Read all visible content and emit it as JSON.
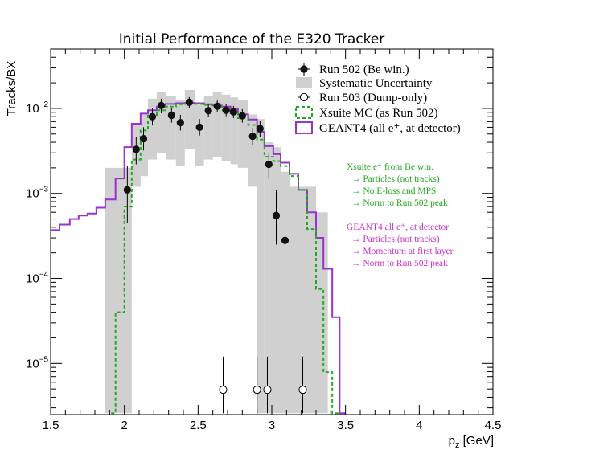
{
  "chart_data": {
    "type": "histogram",
    "title": "Initial Performance of the E320 Tracker",
    "xlabel": "p_z [GeV]",
    "ylabel": "Tracks/BX",
    "xlim": [
      1.5,
      4.5
    ],
    "ylim": [
      2.5e-06,
      0.05
    ],
    "yscale": "log",
    "x_ticks": [
      "1.5",
      "2",
      "2.5",
      "3",
      "3.5",
      "4",
      "4.5"
    ],
    "y_ticks": [
      {
        "value": 1e-05,
        "base": "10",
        "exp": "−5"
      },
      {
        "value": 0.0001,
        "base": "10",
        "exp": "−4"
      },
      {
        "value": 0.001,
        "base": "10",
        "exp": "−3"
      },
      {
        "value": 0.01,
        "base": "10",
        "exp": "−2"
      }
    ],
    "legend": {
      "position": "top-right",
      "entries": [
        "Run 502 (Be win.)",
        "Systematic Uncertainty",
        "Run 503 (Dump-only)",
        "Xsuite MC (as Run 502)",
        "GEANT4 (all e⁺, at detector)"
      ]
    },
    "annotations": [
      {
        "color": "#22aa22",
        "lines": [
          "Xsuite e⁺ from Be win.",
          "→ Particles (not tracks)",
          "→ No E-loss and MPS",
          "→ Norm to Run 502 peak"
        ]
      },
      {
        "color": "#cc33cc",
        "lines": [
          "GEANT4 all e⁺, at detector",
          "→ Particles (not tracks)",
          "→ Momentum at first layer",
          "→ Norm to Run 502 peak"
        ]
      }
    ],
    "series": [
      {
        "name": "Run 502 (Be win.)",
        "kind": "points",
        "points": [
          {
            "x": 2.02,
            "y": 0.0011,
            "lo": 0.00045,
            "hi": 0.0021
          },
          {
            "x": 2.08,
            "y": 0.0033,
            "lo": 0.0022,
            "hi": 0.0046
          },
          {
            "x": 2.13,
            "y": 0.0044,
            "lo": 0.0032,
            "hi": 0.006
          },
          {
            "x": 2.19,
            "y": 0.008,
            "lo": 0.0063,
            "hi": 0.01
          },
          {
            "x": 2.25,
            "y": 0.0108,
            "lo": 0.0088,
            "hi": 0.013
          },
          {
            "x": 2.32,
            "y": 0.0083,
            "lo": 0.0068,
            "hi": 0.0101
          },
          {
            "x": 2.38,
            "y": 0.0068,
            "lo": 0.0055,
            "hi": 0.0084
          },
          {
            "x": 2.44,
            "y": 0.0118,
            "lo": 0.0102,
            "hi": 0.0136
          },
          {
            "x": 2.51,
            "y": 0.006,
            "lo": 0.0048,
            "hi": 0.0075
          },
          {
            "x": 2.57,
            "y": 0.0094,
            "lo": 0.008,
            "hi": 0.0111
          },
          {
            "x": 2.63,
            "y": 0.0106,
            "lo": 0.0091,
            "hi": 0.0124
          },
          {
            "x": 2.69,
            "y": 0.0095,
            "lo": 0.0081,
            "hi": 0.0112
          },
          {
            "x": 2.74,
            "y": 0.0091,
            "lo": 0.0077,
            "hi": 0.0107
          },
          {
            "x": 2.8,
            "y": 0.0082,
            "lo": 0.0068,
            "hi": 0.0098
          },
          {
            "x": 2.87,
            "y": 0.0047,
            "lo": 0.0037,
            "hi": 0.0059
          },
          {
            "x": 2.92,
            "y": 0.0058,
            "lo": 0.0046,
            "hi": 0.0072
          },
          {
            "x": 2.98,
            "y": 0.0022,
            "lo": 0.0015,
            "hi": 0.003
          },
          {
            "x": 3.03,
            "y": 0.00055,
            "lo": 0.00025,
            "hi": 0.0011
          },
          {
            "x": 3.09,
            "y": 0.00028,
            "lo": 2.6e-06,
            "hi": 0.0008
          }
        ]
      },
      {
        "name": "Run 503 (Dump-only)",
        "kind": "points",
        "points": [
          {
            "x": 2.67,
            "y": 4.9e-06,
            "lo": 2.6e-06,
            "hi": 1.2e-05
          },
          {
            "x": 2.9,
            "y": 4.9e-06,
            "lo": 2.6e-06,
            "hi": 1.2e-05
          },
          {
            "x": 2.97,
            "y": 4.9e-06,
            "lo": 2.6e-06,
            "hi": 1.2e-05
          },
          {
            "x": 3.21,
            "y": 4.9e-06,
            "lo": 2.6e-06,
            "hi": 1.2e-05
          }
        ]
      },
      {
        "name": "Systematic Uncertainty",
        "kind": "band",
        "bins": [
          {
            "x0": 1.87,
            "x1": 2.05,
            "lo": 2.6e-06,
            "hi": 0.002
          },
          {
            "x0": 2.05,
            "x1": 2.11,
            "lo": 0.0012,
            "hi": 0.0065
          },
          {
            "x0": 2.11,
            "x1": 2.16,
            "lo": 0.0016,
            "hi": 0.0085
          },
          {
            "x0": 2.16,
            "x1": 2.22,
            "lo": 0.0025,
            "hi": 0.013
          },
          {
            "x0": 2.22,
            "x1": 2.28,
            "lo": 0.003,
            "hi": 0.0155
          },
          {
            "x0": 2.28,
            "x1": 2.35,
            "lo": 0.0025,
            "hi": 0.014
          },
          {
            "x0": 2.35,
            "x1": 2.41,
            "lo": 0.0021,
            "hi": 0.0125
          },
          {
            "x0": 2.41,
            "x1": 2.48,
            "lo": 0.0033,
            "hi": 0.0165
          },
          {
            "x0": 2.48,
            "x1": 2.54,
            "lo": 0.0021,
            "hi": 0.011
          },
          {
            "x0": 2.54,
            "x1": 2.6,
            "lo": 0.0025,
            "hi": 0.014
          },
          {
            "x0": 2.6,
            "x1": 2.66,
            "lo": 0.0027,
            "hi": 0.0155
          },
          {
            "x0": 2.66,
            "x1": 2.72,
            "lo": 0.0024,
            "hi": 0.0145
          },
          {
            "x0": 2.72,
            "x1": 2.77,
            "lo": 0.0022,
            "hi": 0.0135
          },
          {
            "x0": 2.77,
            "x1": 2.84,
            "lo": 0.002,
            "hi": 0.0125
          },
          {
            "x0": 2.84,
            "x1": 2.9,
            "lo": 0.0012,
            "hi": 0.0085
          },
          {
            "x0": 2.9,
            "x1": 2.95,
            "lo": 2.6e-06,
            "hi": 0.0075
          },
          {
            "x0": 2.95,
            "x1": 3.01,
            "lo": 2.6e-06,
            "hi": 0.004
          },
          {
            "x0": 3.01,
            "x1": 3.06,
            "lo": 2.6e-06,
            "hi": 0.0035
          },
          {
            "x0": 3.06,
            "x1": 3.12,
            "lo": 2.6e-06,
            "hi": 0.0018
          },
          {
            "x0": 3.12,
            "x1": 3.3,
            "lo": 2.6e-06,
            "hi": 0.0012
          },
          {
            "x0": 3.3,
            "x1": 3.38,
            "lo": 2.6e-06,
            "hi": 0.0006
          },
          {
            "x0": 3.38,
            "x1": 3.43,
            "lo": 2.6e-06,
            "hi": 2.6e-06
          }
        ]
      },
      {
        "name": "Xsuite MC (as Run 502)",
        "kind": "step",
        "color": "#22aa22",
        "edges": [
          1.91,
          1.94,
          2.0,
          2.05,
          2.11,
          2.16,
          2.22,
          2.28,
          2.35,
          2.41,
          2.48,
          2.54,
          2.6,
          2.66,
          2.72,
          2.77,
          2.84,
          2.9,
          2.95,
          3.01,
          3.06,
          3.12,
          3.18,
          3.24,
          3.3,
          3.35,
          3.41,
          3.46
        ],
        "values": [
          2.6e-06,
          4e-05,
          0.0007,
          0.0025,
          0.0055,
          0.0082,
          0.0095,
          0.0105,
          0.0112,
          0.0115,
          0.0113,
          0.011,
          0.0105,
          0.0095,
          0.0088,
          0.0077,
          0.0064,
          0.0043,
          0.0027,
          0.0024,
          0.0021,
          0.0016,
          0.0011,
          0.00038,
          7.5e-05,
          7.9e-06,
          2.6e-06
        ]
      },
      {
        "name": "GEANT4 (all e⁺, at detector)",
        "kind": "step",
        "color": "#9933cc",
        "edges": [
          1.5,
          1.56,
          1.63,
          1.69,
          1.75,
          1.81,
          1.87,
          1.94,
          2.0,
          2.05,
          2.11,
          2.16,
          2.22,
          2.28,
          2.35,
          2.41,
          2.48,
          2.54,
          2.6,
          2.66,
          2.72,
          2.77,
          2.84,
          2.9,
          2.95,
          3.01,
          3.06,
          3.12,
          3.18,
          3.24,
          3.3,
          3.35,
          3.41,
          3.46,
          3.5
        ],
        "values": [
          0.00037,
          0.00043,
          0.0005,
          0.00055,
          0.00058,
          0.00068,
          0.00085,
          0.0015,
          0.0035,
          0.0066,
          0.0087,
          0.0095,
          0.0105,
          0.0113,
          0.0115,
          0.0116,
          0.0115,
          0.0112,
          0.0108,
          0.0105,
          0.0098,
          0.0085,
          0.0074,
          0.0053,
          0.0036,
          0.0029,
          0.0023,
          0.0017,
          0.0011,
          0.0006,
          0.0003,
          0.00013,
          3.5e-05,
          2.6e-06
        ]
      }
    ]
  }
}
